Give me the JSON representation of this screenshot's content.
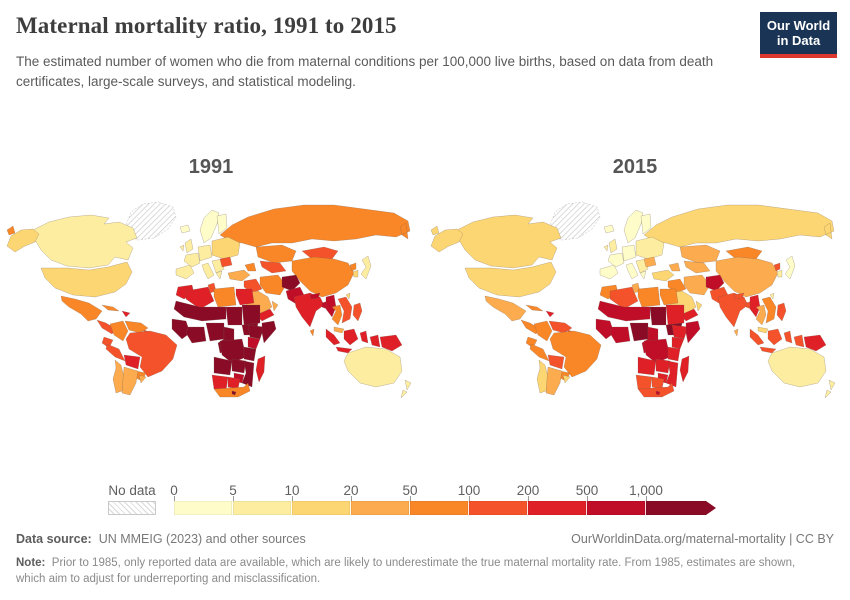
{
  "header": {
    "title": "Maternal mortality ratio, 1991 to 2015",
    "subtitle": "The estimated number of women who die from maternal conditions per 100,000 live births, based on data from death certificates, large-scale surveys, and statistical modeling.",
    "logo_line1": "Our World",
    "logo_line2": "in Data",
    "logo_bg": "#1a3455",
    "logo_accent": "#dc382d"
  },
  "maps": [
    {
      "year": "1991"
    },
    {
      "year": "2015"
    }
  ],
  "legend": {
    "no_data_label": "No data",
    "ticks": [
      "0",
      "5",
      "10",
      "20",
      "50",
      "100",
      "200",
      "500",
      "1,000"
    ]
  },
  "footer": {
    "datasource_label": "Data source:",
    "datasource_text": "UN MMEIG (2023) and other sources",
    "link_text": "OurWorldinData.org/maternal-mortality | CC BY",
    "note_label": "Note:",
    "note_text": "Prior to 1985, only reported data are available, which are likely to underestimate the true maternal mortality rate. From 1985, estimates are shown, which aim to adjust for underreporting and misclassification."
  },
  "chart_data": {
    "type": "heatmap",
    "subtype": "choropleth-world-map-pair",
    "title": "Maternal mortality ratio, 1991 to 2015",
    "unit": "deaths per 100,000 live births",
    "years": [
      "1991",
      "2015"
    ],
    "color_scale": {
      "tick_labels": [
        "0",
        "5",
        "10",
        "20",
        "50",
        "100",
        "200",
        "500",
        "1,000"
      ],
      "band_ranges": [
        "0-5",
        "5-10",
        "10-20",
        "20-50",
        "50-100",
        "100-200",
        "200-500",
        "500-1,000",
        "1,000+"
      ],
      "colors": [
        "#fefcc8",
        "#fdeda1",
        "#fdd674",
        "#fcab4e",
        "#f98728",
        "#f4522b",
        "#df2026",
        "#c00d28",
        "#8a0b25"
      ],
      "no_data": "hatched"
    },
    "regions_note": "Values are color band indexes 1-9 read from the map (1 = 0-5, 9 = 1,000+); 0 = no data. Order: [1991, 2015].",
    "regions": {
      "russia": [
        5,
        3
      ],
      "greenland": [
        0,
        0
      ],
      "canada": [
        2,
        3
      ],
      "alaska": [
        3,
        3
      ],
      "usa": [
        3,
        3
      ],
      "mexico": [
        5,
        4
      ],
      "central-america": [
        6,
        5
      ],
      "cuba": [
        5,
        5
      ],
      "hispaniola": [
        7,
        7
      ],
      "colombia": [
        5,
        5
      ],
      "venezuela": [
        5,
        6
      ],
      "guyanas": [
        6,
        6
      ],
      "ecuador": [
        6,
        5
      ],
      "peru": [
        6,
        5
      ],
      "bolivia": [
        7,
        6
      ],
      "brazil": [
        6,
        5
      ],
      "paraguay": [
        5,
        5
      ],
      "chile": [
        4,
        3
      ],
      "argentina": [
        4,
        4
      ],
      "uruguay": [
        4,
        3
      ],
      "iceland": [
        1,
        1
      ],
      "scandinavia": [
        1,
        1
      ],
      "finland": [
        1,
        1
      ],
      "uk": [
        2,
        2
      ],
      "ireland": [
        2,
        2
      ],
      "iberia": [
        2,
        1
      ],
      "france": [
        2,
        1
      ],
      "germany-central": [
        2,
        1
      ],
      "italy": [
        2,
        1
      ],
      "balkans": [
        2,
        2
      ],
      "greece": [
        2,
        1
      ],
      "eastern-europe": [
        3,
        2
      ],
      "romania": [
        6,
        4
      ],
      "kazakhstan": [
        5,
        4
      ],
      "central-asia": [
        6,
        4
      ],
      "caucasus": [
        5,
        4
      ],
      "mongolia": [
        6,
        5
      ],
      "china": [
        5,
        4
      ],
      "japan": [
        2,
        1
      ],
      "korea-north": [
        5,
        6
      ],
      "korea-south": [
        3,
        2
      ],
      "taiwan": [
        3,
        2
      ],
      "turkey": [
        4,
        3
      ],
      "syria-iraq": [
        6,
        5
      ],
      "iran": [
        5,
        4
      ],
      "saudi": [
        4,
        3
      ],
      "yemen": [
        7,
        7
      ],
      "oman": [
        4,
        3
      ],
      "afghanistan": [
        9,
        8
      ],
      "pakistan": [
        8,
        6
      ],
      "india": [
        7,
        6
      ],
      "nepal": [
        8,
        6
      ],
      "bangladesh": [
        8,
        6
      ],
      "sri-lanka": [
        5,
        4
      ],
      "myanmar": [
        8,
        7
      ],
      "thailand": [
        5,
        4
      ],
      "vietnam-indochina": [
        6,
        5
      ],
      "malaysia": [
        4,
        3
      ],
      "indonesia": [
        7,
        6
      ],
      "philippines": [
        6,
        6
      ],
      "png": [
        7,
        7
      ],
      "australia": [
        2,
        2
      ],
      "new-zealand": [
        2,
        2
      ],
      "morocco": [
        7,
        5
      ],
      "algeria": [
        7,
        6
      ],
      "tunisia": [
        6,
        4
      ],
      "libya": [
        5,
        5
      ],
      "egypt": [
        7,
        5
      ],
      "sahel-west": [
        9,
        8
      ],
      "chad": [
        9,
        9
      ],
      "sudan": [
        9,
        7
      ],
      "south-sudan": [
        9,
        9
      ],
      "senegal-guinea": [
        9,
        8
      ],
      "ivory-ghana": [
        9,
        8
      ],
      "nigeria": [
        9,
        9
      ],
      "cameroon-gabon": [
        9,
        8
      ],
      "ethiopia": [
        9,
        7
      ],
      "somalia": [
        9,
        8
      ],
      "kenya": [
        8,
        7
      ],
      "drc": [
        9,
        8
      ],
      "tanzania": [
        9,
        7
      ],
      "angola": [
        9,
        7
      ],
      "zambia": [
        9,
        7
      ],
      "mozambique": [
        9,
        7
      ],
      "zimbabwe": [
        8,
        7
      ],
      "namibia": [
        7,
        6
      ],
      "botswana": [
        7,
        6
      ],
      "south-africa": [
        5,
        6
      ],
      "lesotho": [
        9,
        8
      ],
      "madagascar": [
        7,
        7
      ]
    }
  }
}
